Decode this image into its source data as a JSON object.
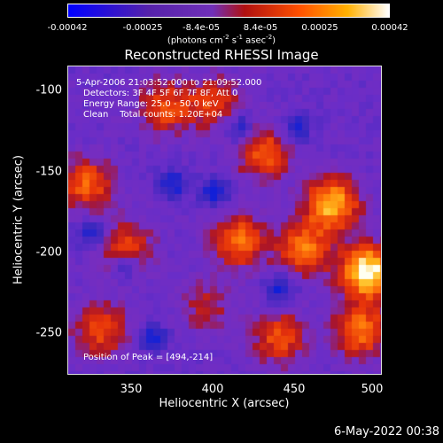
{
  "colorbar": {
    "ticks": [
      "-0.00042",
      "-0.00025",
      "-8.4e-05",
      "8.4e-05",
      "0.00025",
      "0.00042"
    ],
    "units_prefix": "(photons cm",
    "units_exp1": "-2",
    "units_mid": " s",
    "units_exp2": "-1",
    "units_suffix": " asec",
    "units_exp3": "-2",
    "units_close": ")",
    "colors": [
      "#0000ff",
      "#4a1aa0",
      "#6a2ab8",
      "#b01010",
      "#ff5000",
      "#ffb000",
      "#ffffff"
    ]
  },
  "chart_data": {
    "type": "heatmap",
    "title": "Reconstructed RHESSI Image",
    "xlabel": "Heliocentric X (arcsec)",
    "ylabel": "Heliocentric Y (arcsec)",
    "xlim": [
      310,
      502
    ],
    "ylim": [
      -277,
      -87
    ],
    "xticks": [
      "350",
      "400",
      "450",
      "500"
    ],
    "yticks": [
      "-100",
      "-150",
      "-200",
      "-250"
    ],
    "value_range": [
      -0.00042,
      0.00042
    ],
    "peak_position": [
      494,
      -214
    ],
    "hot_regions": [
      {
        "x": 494,
        "y": -214,
        "intensity": 1.0
      },
      {
        "x": 472,
        "y": -172,
        "intensity": 0.8
      },
      {
        "x": 455,
        "y": -200,
        "intensity": 0.6
      },
      {
        "x": 322,
        "y": -160,
        "intensity": 0.55
      },
      {
        "x": 345,
        "y": -200,
        "intensity": 0.5
      },
      {
        "x": 370,
        "y": -112,
        "intensity": 0.5
      },
      {
        "x": 400,
        "y": -110,
        "intensity": 0.45
      },
      {
        "x": 430,
        "y": -140,
        "intensity": 0.55
      },
      {
        "x": 415,
        "y": -195,
        "intensity": 0.6
      },
      {
        "x": 330,
        "y": -250,
        "intensity": 0.5
      },
      {
        "x": 440,
        "y": -255,
        "intensity": 0.5
      },
      {
        "x": 490,
        "y": -250,
        "intensity": 0.6
      },
      {
        "x": 395,
        "y": -235,
        "intensity": 0.3
      }
    ],
    "cold_regions": [
      {
        "x": 345,
        "y": -210
      },
      {
        "x": 400,
        "y": -165
      },
      {
        "x": 375,
        "y": -160
      },
      {
        "x": 450,
        "y": -125
      },
      {
        "x": 415,
        "y": -125
      },
      {
        "x": 362,
        "y": -255
      },
      {
        "x": 325,
        "y": -190
      },
      {
        "x": 440,
        "y": -225
      }
    ]
  },
  "info": {
    "line1": "5-Apr-2006 21:03:52.000 to 21:09:52.000",
    "line2": "Detectors: 3F 4F 5F 6F 7F 8F, Att 0",
    "line3": "Energy Range: 25.0 - 50.0 keV",
    "line4": "Clean    Total counts: 1.20E+04",
    "peak_text": "Position of Peak = [494,-214]"
  },
  "timestamp": "6-May-2022 00:38"
}
